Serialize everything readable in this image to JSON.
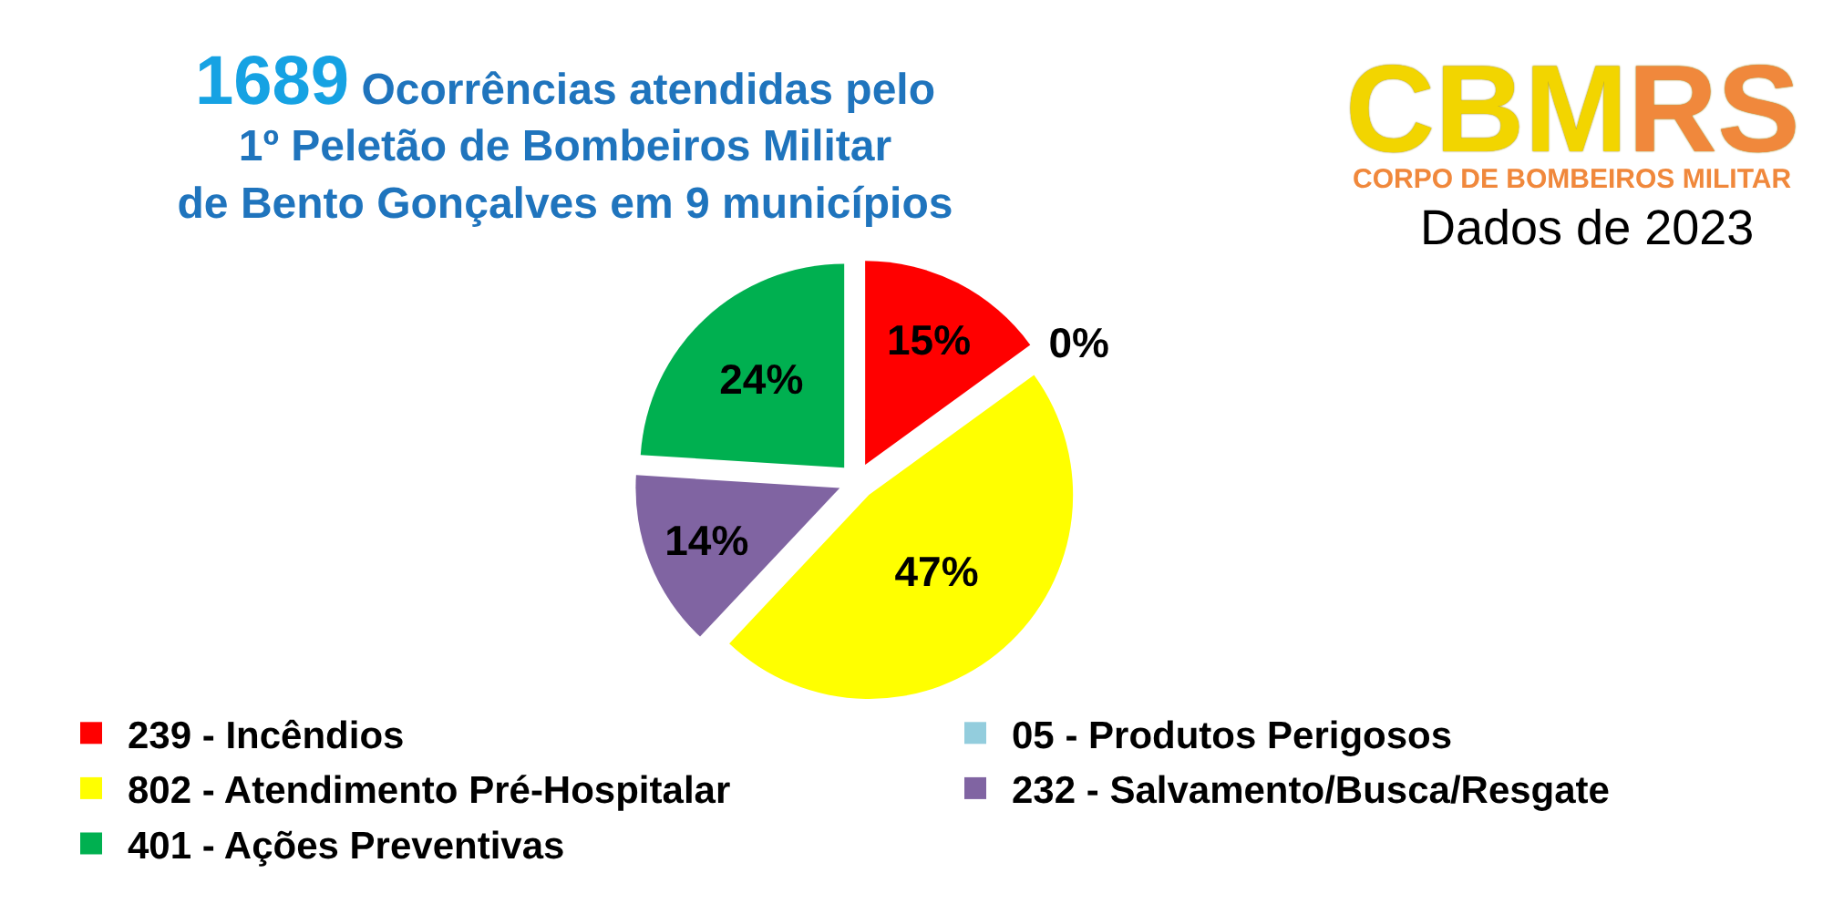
{
  "chart_data": {
    "type": "pie",
    "title": "1689 Ocorrências atendidas pelo\n1º Peletão de Bombeiros Militar\nde Bento Gonçalves em 9 municípios",
    "subtitle": "Dados de 2023",
    "annotations": [
      "CBMRS",
      "CORPO DE BOMBEIROS MILITAR"
    ],
    "categories": [
      "239 - Incêndios",
      "05 - Produtos Perigosos",
      "802 - Atendimento Pré-Hospitalar",
      "232 - Salvamento/Busca/Resgate",
      "401 - Ações Preventivas"
    ],
    "values": [
      15,
      0,
      47,
      14,
      24
    ],
    "value_labels": [
      "15%",
      "0%",
      "47%",
      "14%",
      "24%"
    ],
    "colors": [
      "#ff0000",
      "#93cddd",
      "#ffff00",
      "#8064a2",
      "#00b050"
    ],
    "legend": "bottom"
  }
}
